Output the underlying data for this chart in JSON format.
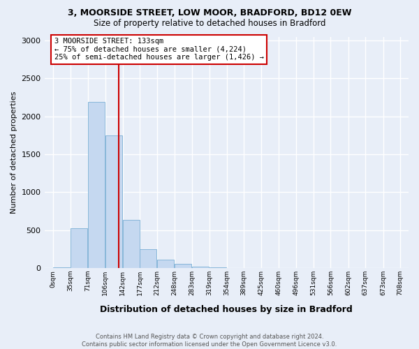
{
  "title1": "3, MOORSIDE STREET, LOW MOOR, BRADFORD, BD12 0EW",
  "title2": "Size of property relative to detached houses in Bradford",
  "xlabel": "Distribution of detached houses by size in Bradford",
  "ylabel": "Number of detached properties",
  "bin_labels": [
    "0sqm",
    "35sqm",
    "71sqm",
    "106sqm",
    "142sqm",
    "177sqm",
    "212sqm",
    "248sqm",
    "283sqm",
    "319sqm",
    "354sqm",
    "389sqm",
    "425sqm",
    "460sqm",
    "496sqm",
    "531sqm",
    "566sqm",
    "602sqm",
    "637sqm",
    "673sqm",
    "708sqm"
  ],
  "bin_starts": [
    0,
    35,
    71,
    106,
    142,
    177,
    212,
    248,
    283,
    319,
    354,
    389,
    425,
    460,
    496,
    531,
    566,
    602,
    637,
    673
  ],
  "bar_values": [
    5,
    520,
    2190,
    1750,
    635,
    250,
    110,
    55,
    20,
    8,
    3,
    2,
    1,
    1,
    1,
    0,
    0,
    0,
    0,
    0
  ],
  "bar_color": "#c5d8f0",
  "bar_edge_color": "#7aafd4",
  "bin_width": 35,
  "vline_x": 133,
  "vline_color": "#cc0000",
  "annotation_text": "3 MOORSIDE STREET: 133sqm\n← 75% of detached houses are smaller (4,224)\n25% of semi-detached houses are larger (1,426) →",
  "ann_box_facecolor": "#ffffff",
  "ann_box_edgecolor": "#cc0000",
  "ylim": [
    0,
    3050
  ],
  "xlim": [
    -18,
    725
  ],
  "background_color": "#e8eef8",
  "grid_color": "#ffffff",
  "footer_text": "Contains HM Land Registry data © Crown copyright and database right 2024.\nContains public sector information licensed under the Open Government Licence v3.0."
}
